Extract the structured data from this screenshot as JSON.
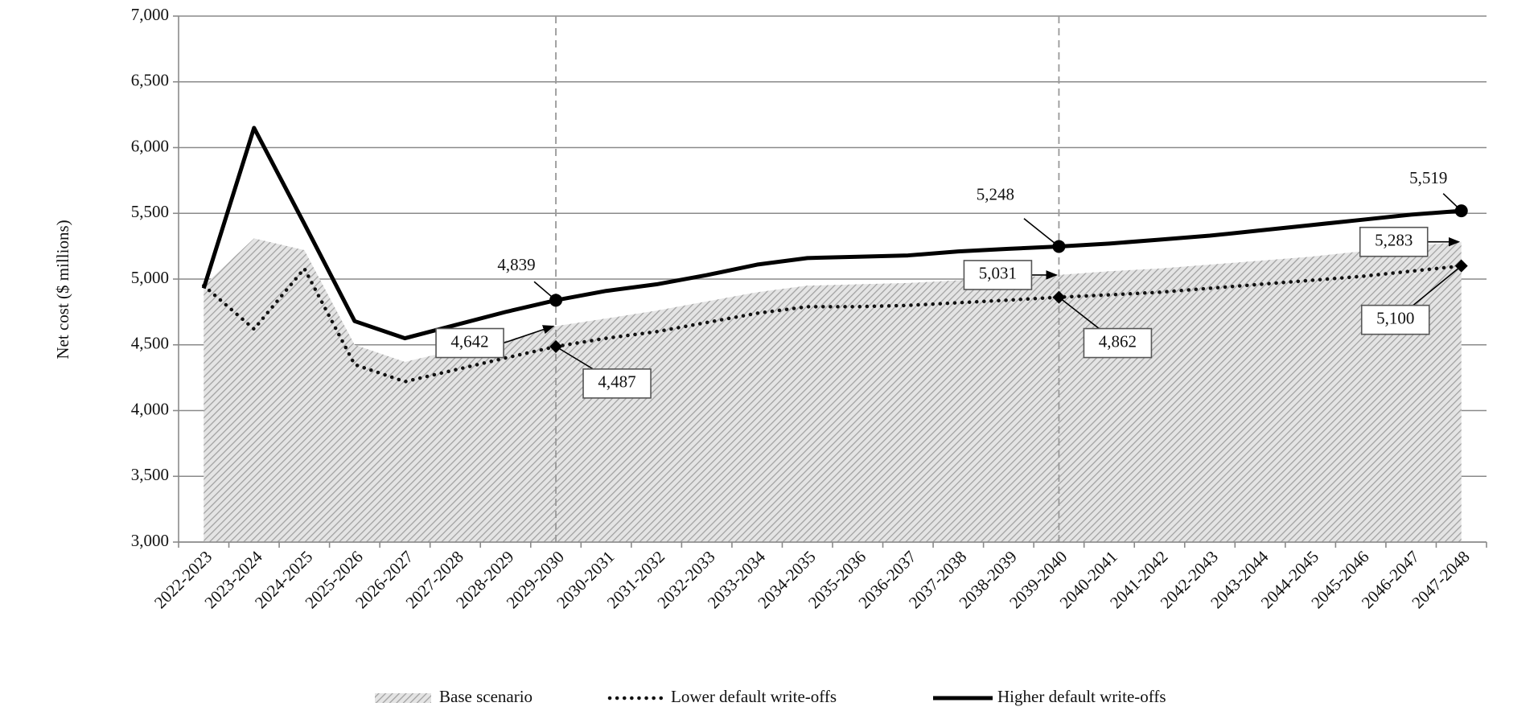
{
  "chart_data": {
    "type": "line",
    "y_label": "Net cost ($ millions)",
    "categories": [
      "2022-2023",
      "2023-2024",
      "2024-2025",
      "2025-2026",
      "2026-2027",
      "2027-2028",
      "2028-2029",
      "2029-2030",
      "2030-2031",
      "2031-2032",
      "2032-2033",
      "2033-2034",
      "2034-2035",
      "2035-2036",
      "2036-2037",
      "2037-2038",
      "2038-2039",
      "2039-2040",
      "2040-2041",
      "2041-2042",
      "2042-2043",
      "2043-2044",
      "2044-2045",
      "2045-2046",
      "2046-2047",
      "2047-2048"
    ],
    "ylim": [
      3000,
      7000
    ],
    "yticks": [
      {
        "value": 3000,
        "label": "3,000"
      },
      {
        "value": 3500,
        "label": "3,500"
      },
      {
        "value": 4000,
        "label": "4,000"
      },
      {
        "value": 4500,
        "label": "4,500"
      },
      {
        "value": 5000,
        "label": "5,000"
      },
      {
        "value": 5500,
        "label": "5,500"
      },
      {
        "value": 6000,
        "label": "6,000"
      },
      {
        "value": 6500,
        "label": "6,500"
      },
      {
        "value": 7000,
        "label": "7,000"
      }
    ],
    "grid": true,
    "legend": "bottom",
    "reference_lines": [
      "2029-2030",
      "2039-2040"
    ],
    "series": [
      {
        "name": "Base scenario",
        "kind": "area",
        "color": "#a8a8a8",
        "values": [
          4950,
          5310,
          5220,
          4500,
          4370,
          4460,
          4530,
          4642,
          4700,
          4760,
          4830,
          4900,
          4950,
          4960,
          4970,
          4990,
          5010,
          5031,
          5060,
          5080,
          5110,
          5140,
          5170,
          5210,
          5250,
          5283
        ],
        "value_labels": [
          null,
          null,
          null,
          null,
          null,
          null,
          null,
          "4,642",
          null,
          null,
          null,
          null,
          null,
          null,
          null,
          null,
          null,
          "5,031",
          null,
          null,
          null,
          null,
          null,
          null,
          null,
          "5,283"
        ]
      },
      {
        "name": "Lower default write-offs",
        "kind": "dotted",
        "color": "#111111",
        "values": [
          4950,
          4620,
          5080,
          4350,
          4220,
          4310,
          4400,
          4487,
          4550,
          4600,
          4670,
          4740,
          4790,
          4790,
          4800,
          4820,
          4840,
          4862,
          4880,
          4900,
          4930,
          4960,
          4990,
          5020,
          5060,
          5100
        ],
        "value_labels": [
          null,
          null,
          null,
          null,
          null,
          null,
          null,
          "4,487",
          null,
          null,
          null,
          null,
          null,
          null,
          null,
          null,
          null,
          "4,862",
          null,
          null,
          null,
          null,
          null,
          null,
          null,
          "5,100"
        ]
      },
      {
        "name": "Higher default write-offs",
        "kind": "solid",
        "color": "#000000",
        "values": [
          4930,
          6150,
          5420,
          4680,
          4550,
          4650,
          4750,
          4839,
          4910,
          4960,
          5030,
          5110,
          5160,
          5170,
          5180,
          5210,
          5230,
          5248,
          5270,
          5300,
          5330,
          5370,
          5410,
          5450,
          5490,
          5519
        ],
        "value_labels": [
          null,
          null,
          null,
          null,
          null,
          null,
          null,
          "4,839",
          null,
          null,
          null,
          null,
          null,
          null,
          null,
          null,
          null,
          "5,248",
          null,
          null,
          null,
          null,
          null,
          null,
          null,
          "5,519"
        ]
      }
    ]
  }
}
